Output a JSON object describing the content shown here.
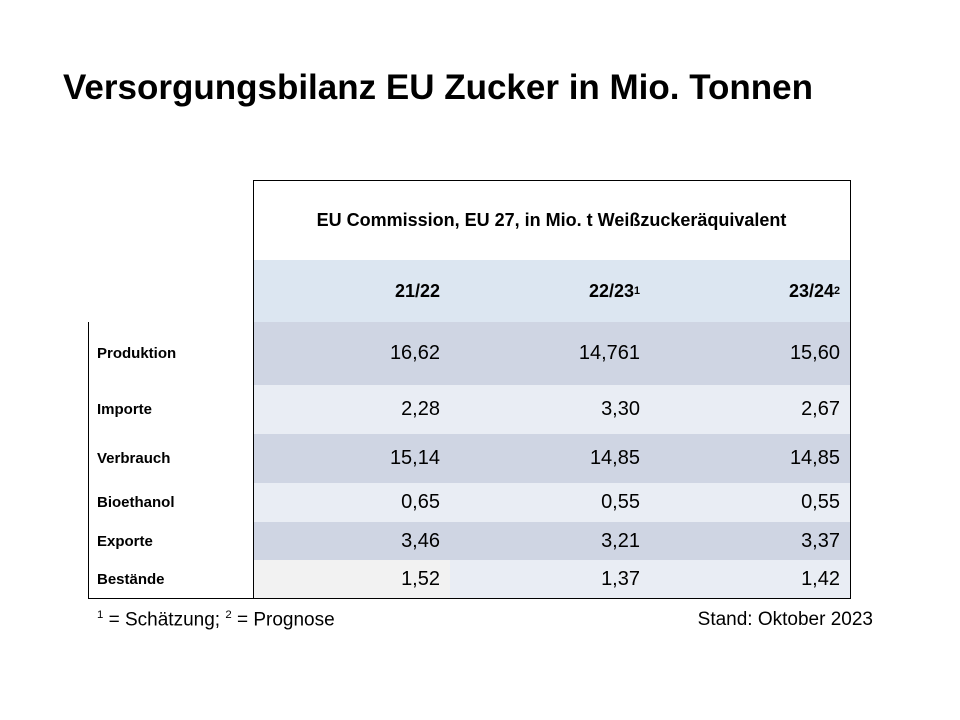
{
  "header": {
    "title": "Versorgungsbilanz EU Zucker in Mio. Tonnen"
  },
  "table": {
    "caption": "EU Commission, EU 27, in Mio. t Weißzuckeräquivalent",
    "columns": [
      {
        "text": "21/22"
      },
      {
        "text": "22/23",
        "sup": "1"
      },
      {
        "text": "23/24",
        "sup": "2"
      }
    ],
    "rows": [
      [
        "Produktion",
        "16,62",
        "14,761",
        "15,60"
      ],
      [
        "Importe",
        "2,28",
        "3,30",
        "2,67"
      ],
      [
        "Verbrauch",
        "15,14",
        "14,85",
        "14,85"
      ],
      [
        "Bioethanol",
        "0,65",
        "0,55",
        "0,55"
      ],
      [
        "Exporte",
        "3,46",
        "3,21",
        "3,37"
      ],
      [
        "Bestände",
        "1,52",
        "1,37",
        "1,42"
      ]
    ]
  },
  "footnote": {
    "mark1": "1",
    "text1": " = Schätzung; ",
    "mark2": "2",
    "text2": " = Prognose"
  },
  "status": "Stand: Oktober 2023"
}
